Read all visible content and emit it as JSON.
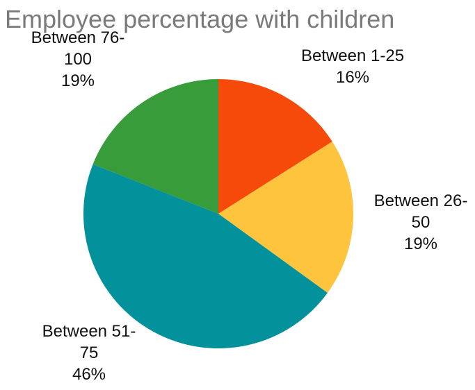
{
  "chart_data": {
    "type": "pie",
    "title": "Employee percentage with children",
    "slices": [
      {
        "name": "Between 1-25",
        "label_lines": [
          "Between 1-25",
          "16%"
        ],
        "value": 16,
        "color": "#f64a0a"
      },
      {
        "name": "Between 26-50",
        "label_lines": [
          "Between 26-",
          "50",
          "19%"
        ],
        "value": 19,
        "color": "#ffc43d"
      },
      {
        "name": "Between 51-75",
        "label_lines": [
          "Between 51-",
          "75",
          "46%"
        ],
        "value": 46,
        "color": "#03919b"
      },
      {
        "name": "Between 76-100",
        "label_lines": [
          "Between 76-",
          "100",
          "19%"
        ],
        "value": 19,
        "color": "#389c3b"
      }
    ]
  }
}
